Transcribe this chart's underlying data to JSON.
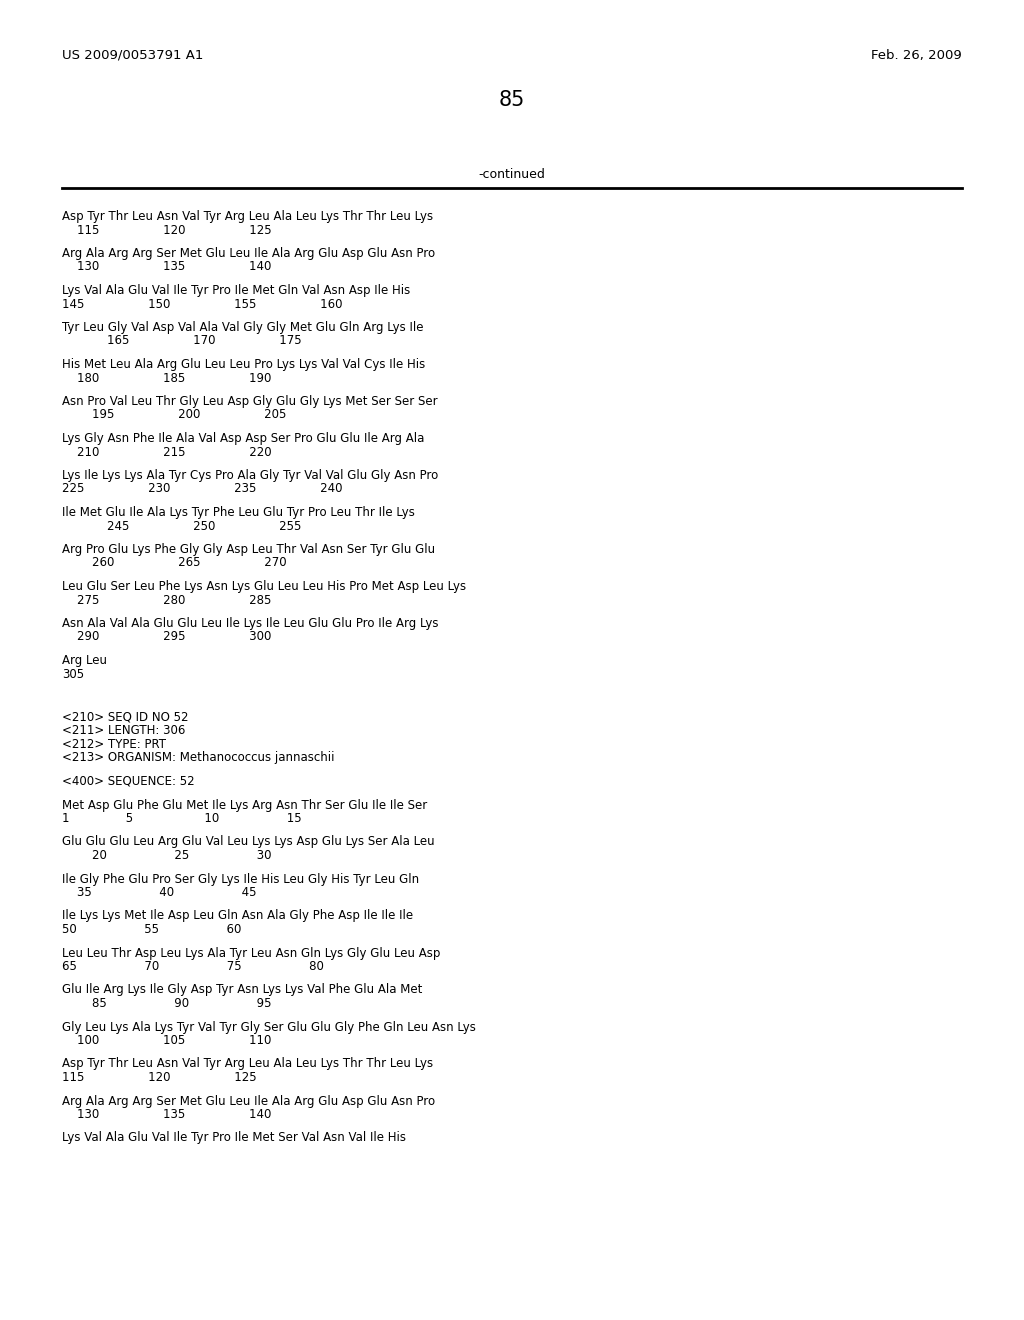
{
  "header_left": "US 2009/0053791 A1",
  "header_right": "Feb. 26, 2009",
  "page_number": "85",
  "continued_label": "-continued",
  "background_color": "#ffffff",
  "text_color": "#000000",
  "content": [
    {
      "type": "seq",
      "line1": "Asp Tyr Thr Leu Asn Val Tyr Arg Leu Ala Leu Lys Thr Thr Leu Lys",
      "line2": "    115                 120                 125"
    },
    {
      "type": "seq",
      "line1": "Arg Ala Arg Arg Ser Met Glu Leu Ile Ala Arg Glu Asp Glu Asn Pro",
      "line2": "    130                 135                 140"
    },
    {
      "type": "seq",
      "line1": "Lys Val Ala Glu Val Ile Tyr Pro Ile Met Gln Val Asn Asp Ile His",
      "line2": "145                 150                 155                 160"
    },
    {
      "type": "seq",
      "line1": "Tyr Leu Gly Val Asp Val Ala Val Gly Gly Met Glu Gln Arg Lys Ile",
      "line2": "            165                 170                 175"
    },
    {
      "type": "seq",
      "line1": "His Met Leu Ala Arg Glu Leu Leu Pro Lys Lys Val Val Cys Ile His",
      "line2": "    180                 185                 190"
    },
    {
      "type": "seq",
      "line1": "Asn Pro Val Leu Thr Gly Leu Asp Gly Glu Gly Lys Met Ser Ser Ser",
      "line2": "        195                 200                 205"
    },
    {
      "type": "seq",
      "line1": "Lys Gly Asn Phe Ile Ala Val Asp Asp Ser Pro Glu Glu Ile Arg Ala",
      "line2": "    210                 215                 220"
    },
    {
      "type": "seq",
      "line1": "Lys Ile Lys Lys Ala Tyr Cys Pro Ala Gly Tyr Val Val Glu Gly Asn Pro",
      "line2": "225                 230                 235                 240"
    },
    {
      "type": "seq",
      "line1": "Ile Met Glu Ile Ala Lys Tyr Phe Leu Glu Tyr Pro Leu Thr Ile Lys",
      "line2": "            245                 250                 255"
    },
    {
      "type": "seq",
      "line1": "Arg Pro Glu Lys Phe Gly Gly Asp Leu Thr Val Asn Ser Tyr Glu Glu",
      "line2": "        260                 265                 270"
    },
    {
      "type": "seq",
      "line1": "Leu Glu Ser Leu Phe Lys Asn Lys Glu Leu Leu His Pro Met Asp Leu Lys",
      "line2": "    275                 280                 285"
    },
    {
      "type": "seq",
      "line1": "Asn Ala Val Ala Glu Glu Leu Ile Lys Ile Leu Glu Glu Pro Ile Arg Lys",
      "line2": "    290                 295                 300"
    },
    {
      "type": "seq",
      "line1": "Arg Leu",
      "line2": "305"
    },
    {
      "type": "blank"
    },
    {
      "type": "blank"
    },
    {
      "type": "meta",
      "line": "<210> SEQ ID NO 52"
    },
    {
      "type": "meta",
      "line": "<211> LENGTH: 306"
    },
    {
      "type": "meta",
      "line": "<212> TYPE: PRT"
    },
    {
      "type": "meta",
      "line": "<213> ORGANISM: Methanococcus jannaschii"
    },
    {
      "type": "blank"
    },
    {
      "type": "meta",
      "line": "<400> SEQUENCE: 52"
    },
    {
      "type": "blank"
    },
    {
      "type": "seq",
      "line1": "Met Asp Glu Phe Glu Met Ile Lys Arg Asn Thr Ser Glu Ile Ile Ser",
      "line2": "1               5                   10                  15"
    },
    {
      "type": "seq",
      "line1": "Glu Glu Glu Leu Arg Glu Val Leu Lys Lys Asp Glu Lys Ser Ala Leu",
      "line2": "        20                  25                  30"
    },
    {
      "type": "seq",
      "line1": "Ile Gly Phe Glu Pro Ser Gly Lys Ile His Leu Gly His Tyr Leu Gln",
      "line2": "    35                  40                  45"
    },
    {
      "type": "seq",
      "line1": "Ile Lys Lys Met Ile Asp Leu Gln Asn Ala Gly Phe Asp Ile Ile Ile",
      "line2": "50                  55                  60"
    },
    {
      "type": "seq",
      "line1": "Leu Leu Thr Asp Leu Lys Ala Tyr Leu Asn Gln Lys Gly Glu Leu Asp",
      "line2": "65                  70                  75                  80"
    },
    {
      "type": "seq",
      "line1": "Glu Ile Arg Lys Ile Gly Asp Tyr Asn Lys Lys Val Phe Glu Ala Met",
      "line2": "        85                  90                  95"
    },
    {
      "type": "seq",
      "line1": "Gly Leu Lys Ala Lys Tyr Val Tyr Gly Ser Glu Glu Gly Phe Gln Leu Asn Lys",
      "line2": "    100                 105                 110"
    },
    {
      "type": "seq",
      "line1": "Asp Tyr Thr Leu Asn Val Tyr Arg Leu Ala Leu Lys Thr Thr Leu Lys",
      "line2": "115                 120                 125"
    },
    {
      "type": "seq",
      "line1": "Arg Ala Arg Arg Ser Met Glu Leu Ile Ala Arg Glu Asp Glu Asn Pro",
      "line2": "    130                 135                 140"
    },
    {
      "type": "seq",
      "line1": "Lys Val Ala Glu Val Ile Tyr Pro Ile Met Ser Val Asn Val Ile His",
      "line2": ""
    }
  ]
}
